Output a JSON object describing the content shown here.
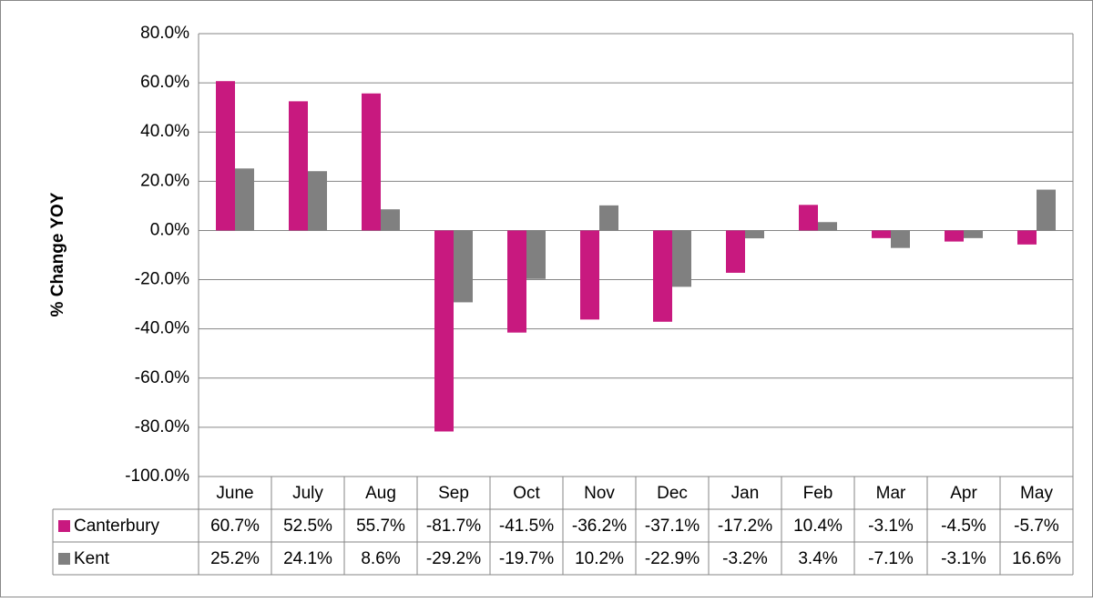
{
  "chart_data": {
    "type": "bar",
    "y_label": "% Change YOY",
    "categories": [
      "June",
      "July",
      "Aug",
      "Sep",
      "Oct",
      "Nov",
      "Dec",
      "Jan",
      "Feb",
      "Mar",
      "Apr",
      "May"
    ],
    "series": [
      {
        "name": "Canterbury",
        "color": "#c8197f",
        "values": [
          60.7,
          52.5,
          55.7,
          -81.7,
          -41.5,
          -36.2,
          -37.1,
          -17.2,
          10.4,
          -3.1,
          -4.5,
          -5.7
        ],
        "value_labels": [
          "60.7%",
          "52.5%",
          "55.7%",
          "-81.7%",
          "-41.5%",
          "-36.2%",
          "-37.1%",
          "-17.2%",
          "10.4%",
          "-3.1%",
          "-4.5%",
          "-5.7%"
        ]
      },
      {
        "name": "Kent",
        "color": "#808080",
        "values": [
          25.2,
          24.1,
          8.6,
          -29.2,
          -19.7,
          10.2,
          -22.9,
          -3.2,
          3.4,
          -7.1,
          -3.1,
          16.6
        ],
        "value_labels": [
          "25.2%",
          "24.1%",
          "8.6%",
          "-29.2%",
          "-19.7%",
          "10.2%",
          "-22.9%",
          "-3.2%",
          "3.4%",
          "-7.1%",
          "-3.1%",
          "16.6%"
        ]
      }
    ],
    "ylim": [
      -100,
      80
    ],
    "yticks": [
      {
        "value": -100,
        "label": "-100.0%"
      },
      {
        "value": -80,
        "label": "-80.0%"
      },
      {
        "value": -60,
        "label": "-60.0%"
      },
      {
        "value": -40,
        "label": "-40.0%"
      },
      {
        "value": -20,
        "label": "-20.0%"
      },
      {
        "value": 0,
        "label": "0.0%"
      },
      {
        "value": 20,
        "label": "20.0%"
      },
      {
        "value": 40,
        "label": "40.0%"
      },
      {
        "value": 60,
        "label": "60.0%"
      },
      {
        "value": 80,
        "label": "80.0%"
      }
    ],
    "grid": true
  }
}
